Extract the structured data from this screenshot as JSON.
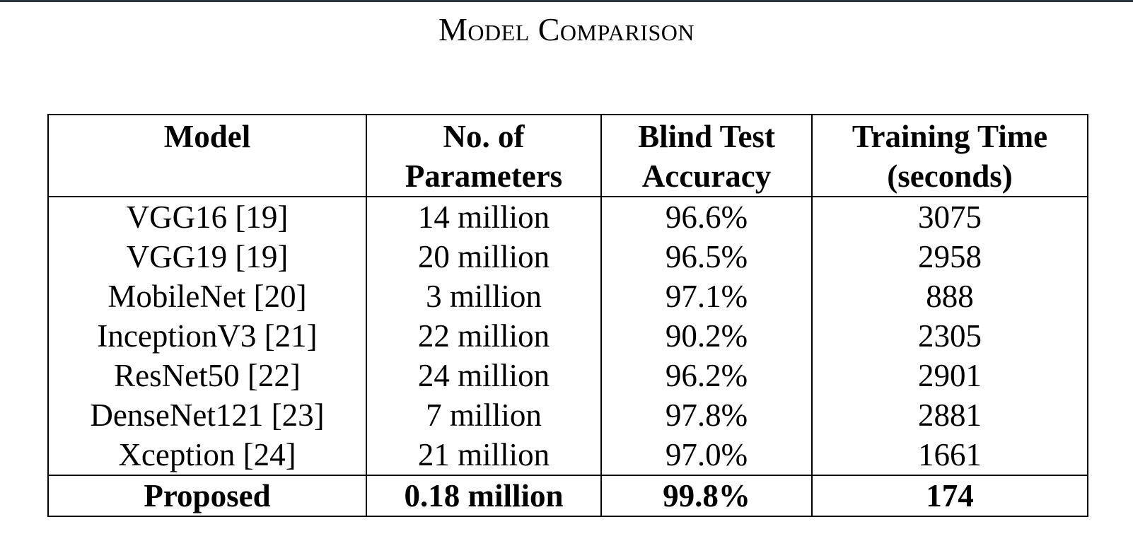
{
  "title": "Model Comparison",
  "headers": [
    {
      "line1": "Model",
      "line2": ""
    },
    {
      "line1": "No. of",
      "line2": "Parameters"
    },
    {
      "line1": "Blind Test",
      "line2": "Accuracy"
    },
    {
      "line1": "Training Time",
      "line2": "(seconds)"
    }
  ],
  "rows": [
    {
      "model": "VGG16 [19]",
      "params": "14 million",
      "accuracy": "96.6%",
      "time": "3075"
    },
    {
      "model": "VGG19 [19]",
      "params": "20 million",
      "accuracy": "96.5%",
      "time": "2958"
    },
    {
      "model": "MobileNet [20]",
      "params": "3 million",
      "accuracy": "97.1%",
      "time": "888"
    },
    {
      "model": "InceptionV3 [21]",
      "params": "22 million",
      "accuracy": "90.2%",
      "time": "2305"
    },
    {
      "model": "ResNet50 [22]",
      "params": "24 million",
      "accuracy": "96.2%",
      "time": "2901"
    },
    {
      "model": "DenseNet121 [23]",
      "params": "7 million",
      "accuracy": "97.8%",
      "time": "2881"
    },
    {
      "model": "Xception [24]",
      "params": "21 million",
      "accuracy": "97.0%",
      "time": "1661"
    }
  ],
  "proposed": {
    "model": "Proposed",
    "params": "0.18 million",
    "accuracy": "99.8%",
    "time": "174"
  }
}
